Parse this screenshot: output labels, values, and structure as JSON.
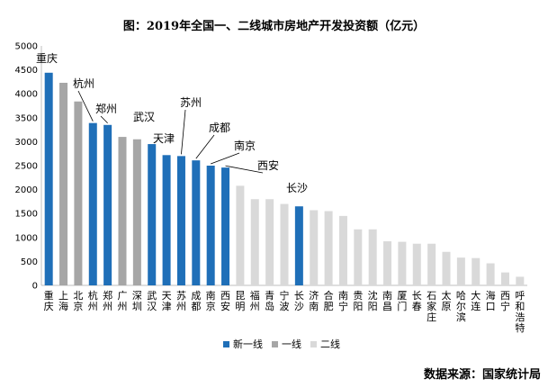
{
  "title": "图：2019年全国一、二线城市房地产开发投资额（亿元）",
  "source": "数据来源：国家统计局",
  "colors": {
    "新一线": "#1f6fb8",
    "一线": "#a6a6a6",
    "二线": "#d9d9d9"
  },
  "chart_data": {
    "type": "bar",
    "title": "图：2019年全国一、二线城市房地产开发投资额（亿元）",
    "xlabel": "",
    "ylabel": "",
    "ylim": [
      0,
      5000
    ],
    "yticks": [
      0,
      500,
      1000,
      1500,
      2000,
      2500,
      3000,
      3500,
      4000,
      4500,
      5000
    ],
    "grid": false,
    "legend_position": "bottom",
    "legend": [
      "新一线",
      "一线",
      "二线"
    ],
    "categories": [
      "重庆",
      "上海",
      "北京",
      "杭州",
      "郑州",
      "广州",
      "深圳",
      "武汉",
      "天津",
      "苏州",
      "成都",
      "南京",
      "西安",
      "昆明",
      "福州",
      "青岛",
      "宁波",
      "长沙",
      "济南",
      "合肥",
      "南宁",
      "贵阳",
      "沈阳",
      "南昌",
      "厦门",
      "长春",
      "石家庄",
      "太原",
      "哈尔滨",
      "大连",
      "海口",
      "西宁",
      "呼和浩特"
    ],
    "groups": [
      "新一线",
      "一线",
      "一线",
      "新一线",
      "新一线",
      "一线",
      "一线",
      "新一线",
      "新一线",
      "新一线",
      "新一线",
      "新一线",
      "新一线",
      "二线",
      "二线",
      "二线",
      "二线",
      "新一线",
      "二线",
      "二线",
      "二线",
      "二线",
      "二线",
      "二线",
      "二线",
      "二线",
      "二线",
      "二线",
      "二线",
      "二线",
      "二线",
      "二线",
      "二线"
    ],
    "values": [
      4440,
      4230,
      3840,
      3390,
      3350,
      3100,
      3050,
      2950,
      2720,
      2700,
      2610,
      2500,
      2460,
      2080,
      1800,
      1800,
      1700,
      1650,
      1570,
      1550,
      1450,
      1170,
      1170,
      920,
      910,
      870,
      870,
      700,
      580,
      570,
      460,
      270,
      180
    ],
    "annotations": [
      {
        "category": "重庆",
        "text": "重庆"
      },
      {
        "category": "杭州",
        "text": "杭州"
      },
      {
        "category": "郑州",
        "text": "郑州"
      },
      {
        "category": "武汉",
        "text": "武汉"
      },
      {
        "category": "天津",
        "text": "天津"
      },
      {
        "category": "苏州",
        "text": "苏州"
      },
      {
        "category": "成都",
        "text": "成都"
      },
      {
        "category": "南京",
        "text": "南京"
      },
      {
        "category": "西安",
        "text": "西安"
      },
      {
        "category": "长沙",
        "text": "长沙"
      }
    ]
  }
}
